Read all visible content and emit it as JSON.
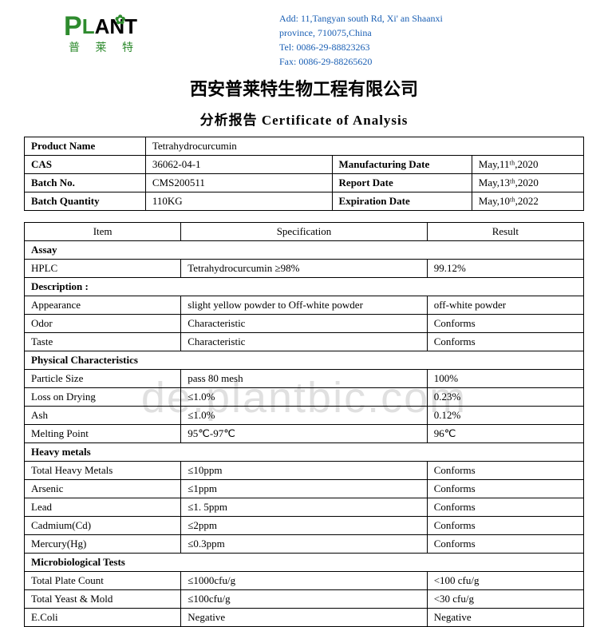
{
  "header": {
    "logo_cn": "普 莱 特",
    "addr_line1": "Add: 11,Tangyan south Rd, Xi' an Shaanxi",
    "addr_line2": "province, 710075,China",
    "tel": "Tel: 0086-29-88823263",
    "fax": "Fax: 0086-29-88265620"
  },
  "titles": {
    "company": "西安普莱特生物工程有限公司",
    "cert": "分析报告 Certificate  of  Analysis"
  },
  "info": {
    "product_name_lbl": "Product Name",
    "product_name": "Tetrahydrocurcumin",
    "cas_lbl": "CAS",
    "cas": "36062-04-1",
    "mfg_lbl": "Manufacturing Date",
    "mfg": "May,11ᵗʰ,2020",
    "batch_no_lbl": "Batch No.",
    "batch_no": "CMS200511",
    "report_lbl": "Report Date",
    "report": "May,13ᵗʰ,2020",
    "batch_qty_lbl": "Batch Quantity",
    "batch_qty": "110KG",
    "exp_lbl": "Expiration Date",
    "exp": "May,10ᵗʰ,2022"
  },
  "spec": {
    "h_item": "Item",
    "h_spec": "Specification",
    "h_result": "Result",
    "sections": {
      "assay": "Assay",
      "description": "Description :",
      "physical": "Physical Characteristics",
      "heavy": "Heavy metals",
      "micro": "Microbiological Tests"
    },
    "rows": {
      "hplc": {
        "i": "HPLC",
        "s": "Tetrahydrocurcumin ≥98%",
        "r": "99.12%"
      },
      "appearance": {
        "i": "Appearance",
        "s": " slight yellow powder to Off-white powder",
        "r": "off-white powder"
      },
      "odor": {
        "i": "Odor",
        "s": "Characteristic",
        "r": "Conforms"
      },
      "taste": {
        "i": "Taste",
        "s": "Characteristic",
        "r": "Conforms"
      },
      "particle": {
        "i": "Particle Size",
        "s": "pass 80 mesh",
        "r": "100%"
      },
      "loss": {
        "i": "Loss on Drying",
        "s": "≤1.0%",
        "r": "0.23%"
      },
      "ash": {
        "i": "Ash",
        "s": "≤1.0%",
        "r": "0.12%"
      },
      "melting": {
        "i": "Melting Point",
        "s": "95℃-97℃",
        "r": "96℃"
      },
      "thm": {
        "i": "Total Heavy Metals",
        "s": "≤10ppm",
        "r": "Conforms"
      },
      "arsenic": {
        "i": "Arsenic",
        "s": "≤1ppm",
        "r": "Conforms"
      },
      "lead": {
        "i": "Lead",
        "s": "≤1. 5ppm",
        "r": "Conforms"
      },
      "cadmium": {
        "i": "Cadmium(Cd)",
        "s": "≤2ppm",
        "r": "Conforms"
      },
      "mercury": {
        "i": "Mercury(Hg)",
        "s": "≤0.3ppm",
        "r": "Conforms"
      },
      "tpc": {
        "i": "Total Plate Count",
        "s": "≤1000cfu/g",
        "r": "<100 cfu/g"
      },
      "tym": {
        "i": "Total Yeast & Mold",
        "s": "≤100cfu/g",
        "r": "<30 cfu/g"
      },
      "ecoli": {
        "i": "E.Coli",
        "s": "Negative",
        "r": "Negative"
      }
    }
  },
  "watermark": "de.plantbic.com"
}
